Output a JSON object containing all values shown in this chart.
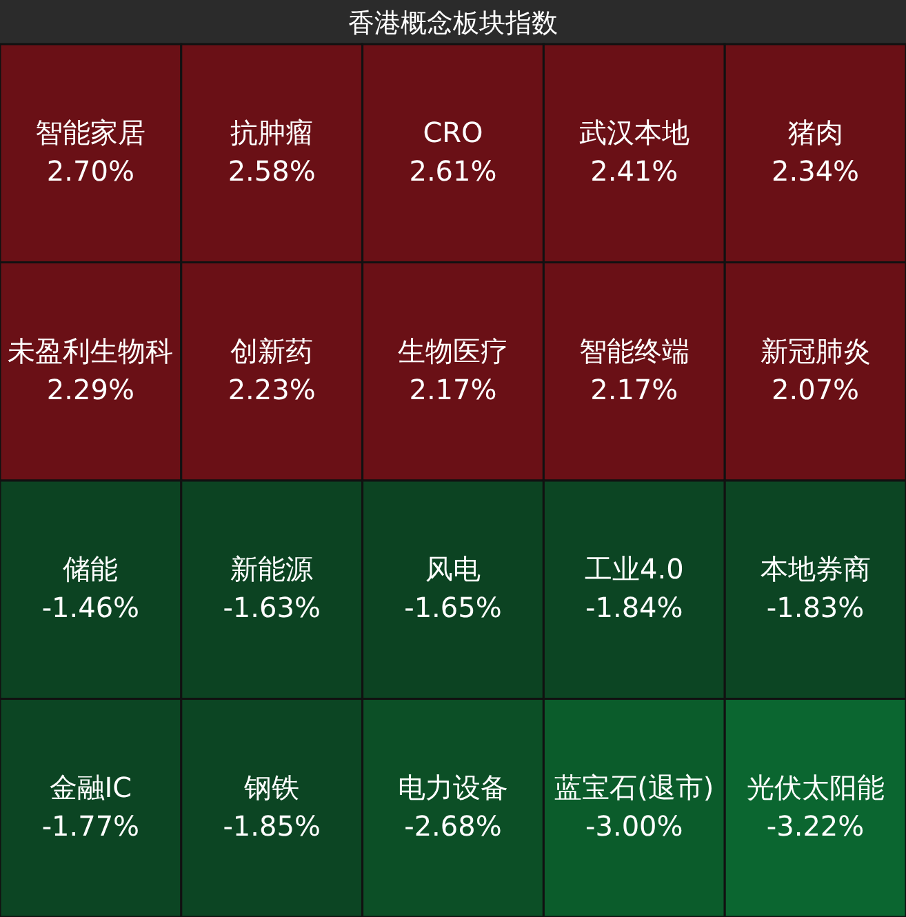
{
  "chart_data": {
    "type": "other",
    "title": "香港概念板块指数",
    "categories": [
      "智能家居",
      "抗肿瘤",
      "CRO",
      "武汉本地",
      "猪肉",
      "未盈利生物科",
      "创新药",
      "生物医疗",
      "智能终端",
      "新冠肺炎",
      "储能",
      "新能源",
      "风电",
      "工业4.0",
      "本地券商",
      "金融IC",
      "钢铁",
      "电力设备",
      "蓝宝石(退市)",
      "光伏太阳能"
    ],
    "values": [
      2.7,
      2.58,
      2.61,
      2.41,
      2.34,
      2.29,
      2.23,
      2.17,
      2.17,
      2.07,
      -1.46,
      -1.63,
      -1.65,
      -1.84,
      -1.83,
      -1.77,
      -1.85,
      -2.68,
      -3.0,
      -3.22
    ],
    "value_labels": [
      "2.70%",
      "2.58%",
      "2.61%",
      "2.41%",
      "2.34%",
      "2.29%",
      "2.23%",
      "2.17%",
      "2.17%",
      "2.07%",
      "-1.46%",
      "-1.63%",
      "-1.65%",
      "-1.84%",
      "-1.83%",
      "-1.77%",
      "-1.85%",
      "-2.68%",
      "-3.00%",
      "-3.22%"
    ],
    "colors": [
      "#6a1016",
      "#6a1016",
      "#6a1016",
      "#6a1016",
      "#6a1016",
      "#6a1016",
      "#6a1016",
      "#6a1016",
      "#6a1016",
      "#6a1016",
      "#0c4322",
      "#0c4322",
      "#0c4322",
      "#0c4523",
      "#0c4523",
      "#0c4523",
      "#0c4523",
      "#0c4f26",
      "#0b5c2b",
      "#0b6630"
    ]
  }
}
